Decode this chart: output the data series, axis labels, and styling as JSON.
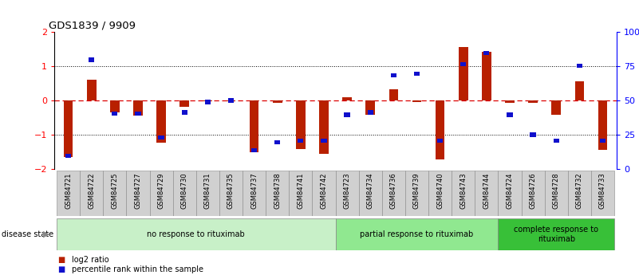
{
  "title": "GDS1839 / 9909",
  "samples": [
    "GSM84721",
    "GSM84722",
    "GSM84725",
    "GSM84727",
    "GSM84729",
    "GSM84730",
    "GSM84731",
    "GSM84735",
    "GSM84737",
    "GSM84738",
    "GSM84741",
    "GSM84742",
    "GSM84723",
    "GSM84734",
    "GSM84736",
    "GSM84739",
    "GSM84740",
    "GSM84743",
    "GSM84744",
    "GSM84724",
    "GSM84726",
    "GSM84728",
    "GSM84732",
    "GSM84733"
  ],
  "log2_ratio": [
    -1.65,
    0.6,
    -0.35,
    -0.45,
    -1.22,
    -0.18,
    -0.02,
    -0.03,
    -1.52,
    -0.08,
    -1.42,
    -1.55,
    0.1,
    -0.42,
    0.32,
    -0.05,
    -1.72,
    1.55,
    1.42,
    -0.06,
    -0.08,
    -0.42,
    0.55,
    -1.45
  ],
  "pct_mapped": [
    -1.62,
    1.18,
    -0.38,
    -0.38,
    -1.08,
    -0.35,
    -0.05,
    0.0,
    -1.45,
    -1.22,
    -1.18,
    -1.18,
    -0.42,
    -0.35,
    0.72,
    0.78,
    -1.18,
    1.05,
    1.38,
    -0.42,
    -1.0,
    -1.18,
    1.0,
    -1.18
  ],
  "groups": [
    {
      "label": "no response to rituximab",
      "start": 0,
      "end": 12,
      "color": "#c8f0c8"
    },
    {
      "label": "partial response to rituximab",
      "start": 12,
      "end": 19,
      "color": "#90e890"
    },
    {
      "label": "complete response to\nrituximab",
      "start": 19,
      "end": 24,
      "color": "#38c038"
    }
  ],
  "bar_color_red": "#b82000",
  "bar_color_blue": "#1010cc",
  "ylim": [
    -2,
    2
  ],
  "yticks": [
    -2,
    -1,
    0,
    1,
    2
  ],
  "y2ticks": [
    0,
    25,
    50,
    75,
    100
  ],
  "y2ticklabels": [
    "0",
    "25",
    "50",
    "75",
    "100%"
  ]
}
